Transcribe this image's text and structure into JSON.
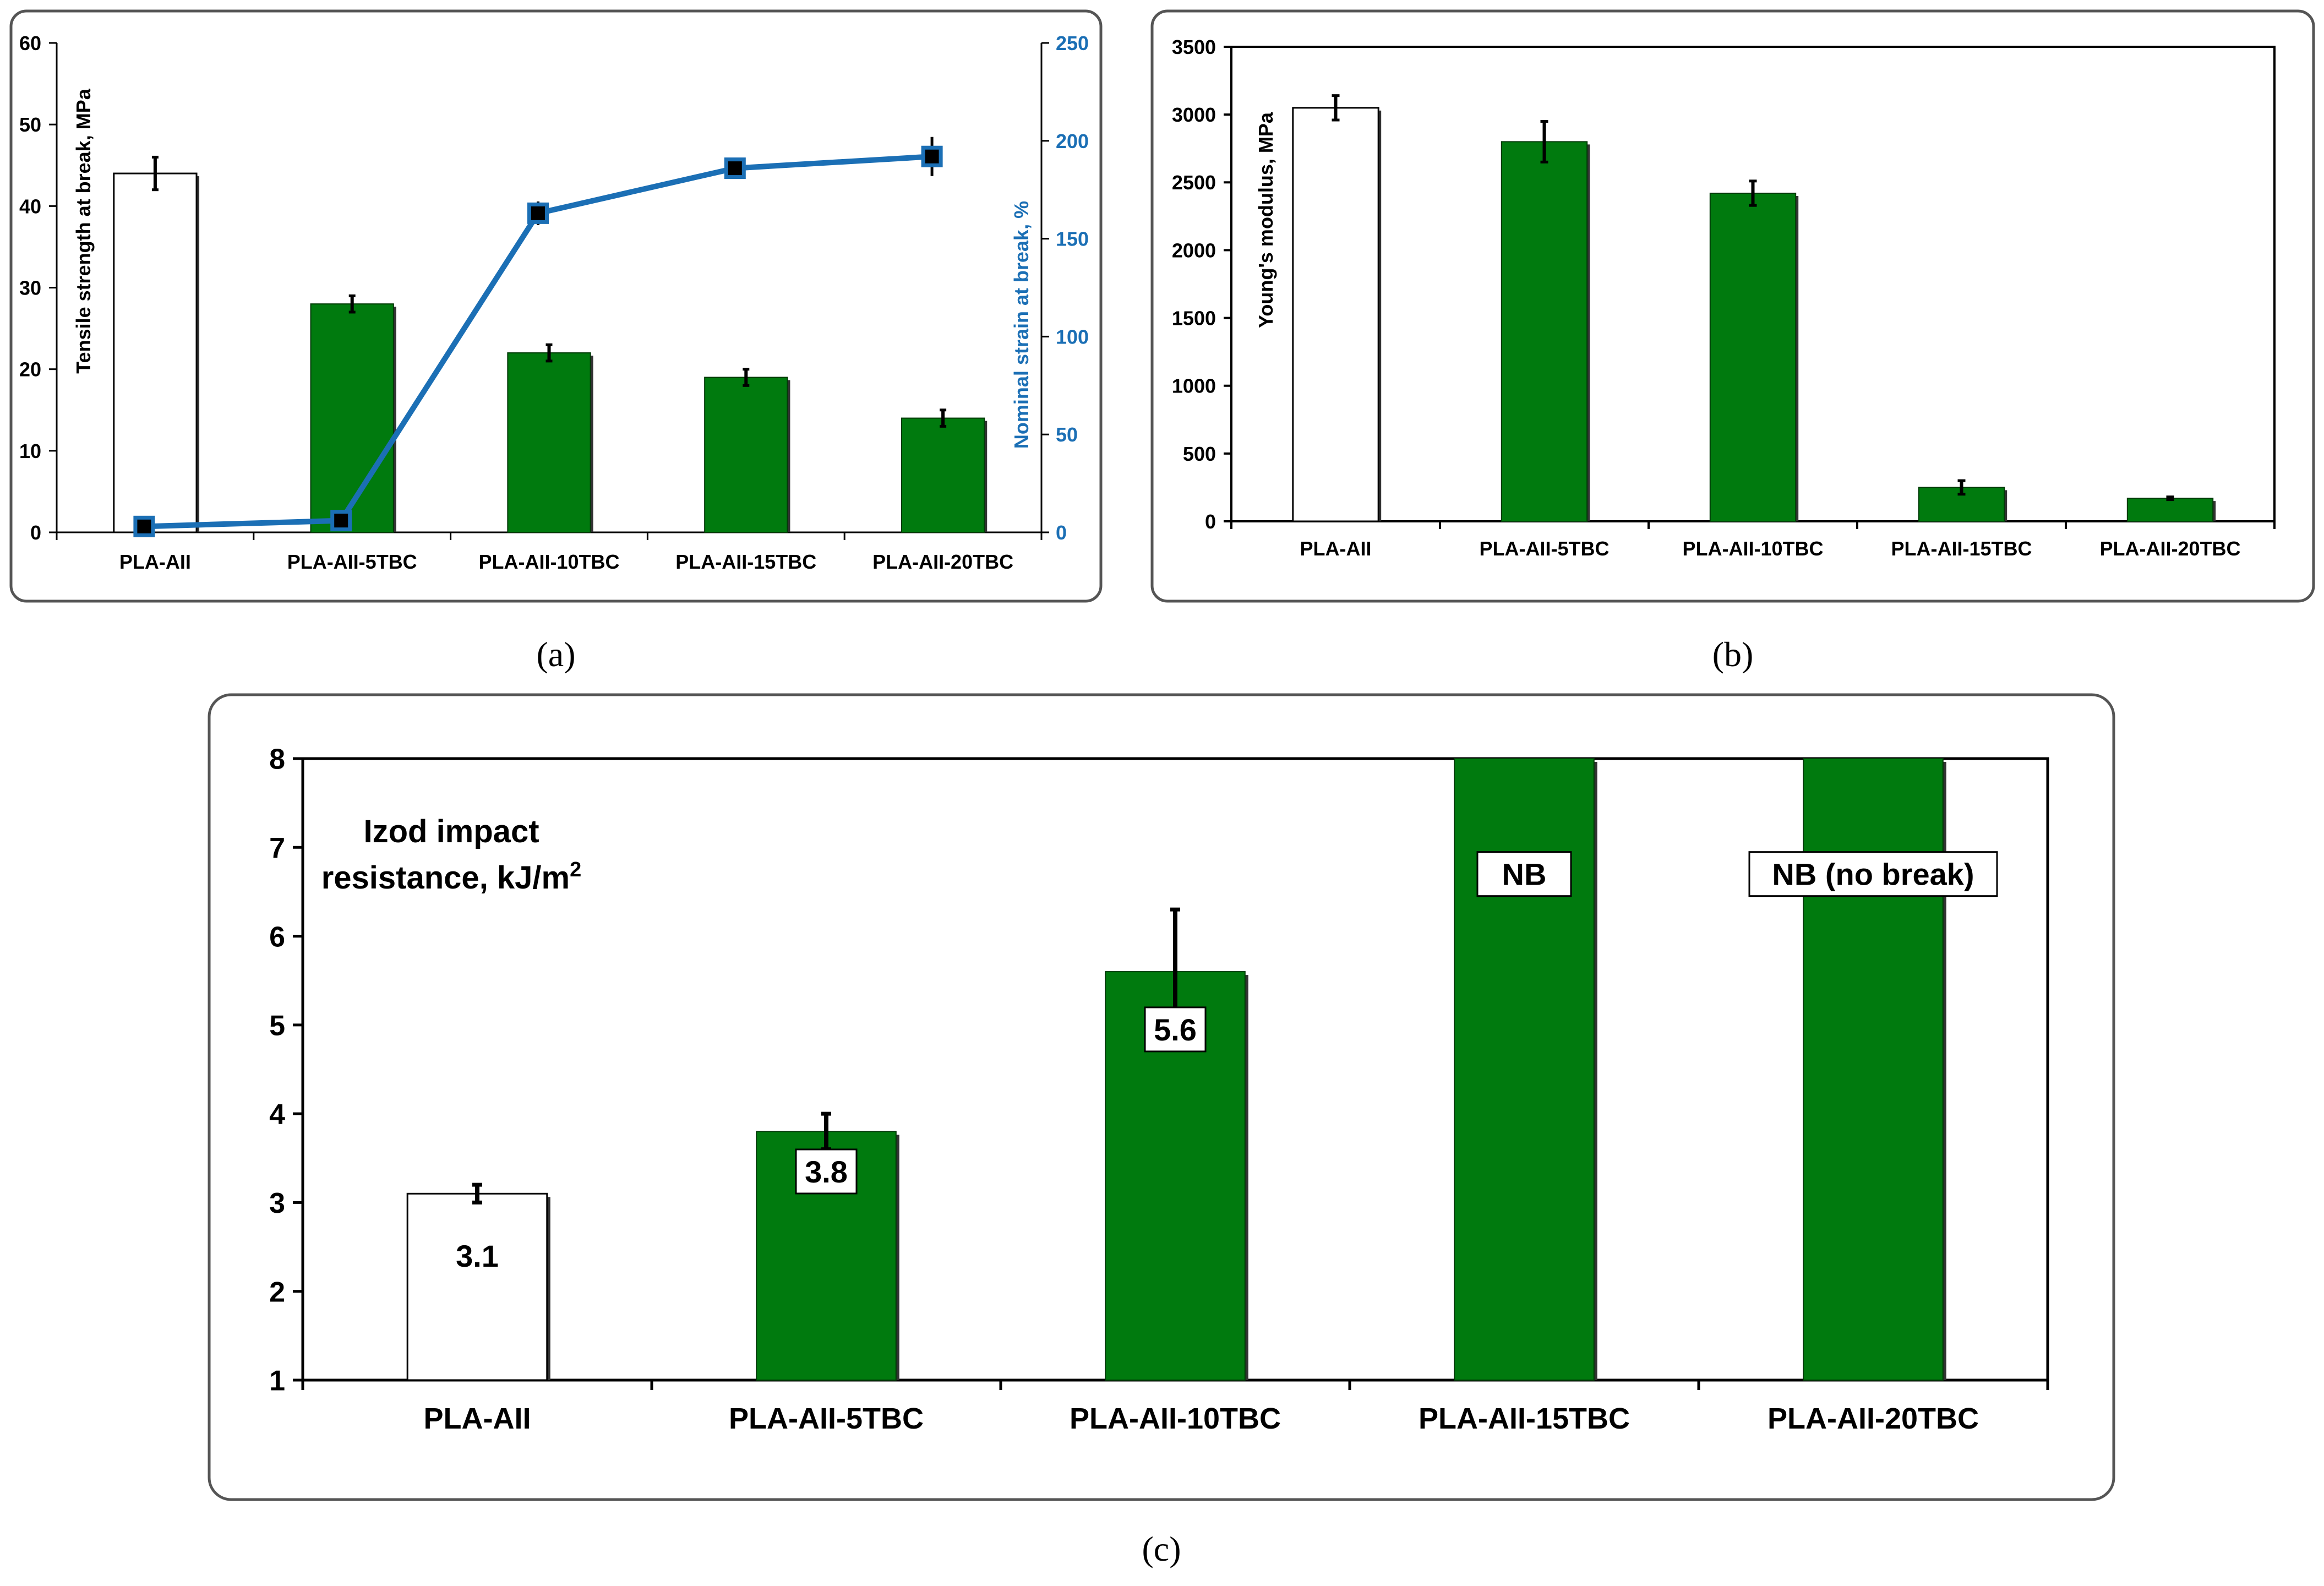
{
  "colors": {
    "green": "#007a0e",
    "blue": "#1b6fb5",
    "white_bar": "#ffffff",
    "frame": "#555555"
  },
  "labels": {
    "a": "(a)",
    "b": "(b)",
    "c": "(c)"
  },
  "chart_data": [
    {
      "id": "a",
      "type": "bar",
      "categories": [
        "PLA-AII",
        "PLA-AII-5TBC",
        "PLA-AII-10TBC",
        "PLA-AII-15TBC",
        "PLA-AII-20TBC"
      ],
      "ylabel": "Tensile strength at break, MPa",
      "ylim": [
        0,
        60
      ],
      "yticks": [
        "0",
        "10",
        "20",
        "30",
        "40",
        "50",
        "60"
      ],
      "series": [
        {
          "name": "Tensile strength at break, MPa",
          "values": [
            44,
            28,
            22,
            19,
            14
          ],
          "errors": [
            2,
            1,
            1,
            1,
            1
          ],
          "axis": "left"
        },
        {
          "name": "Nominal strain at break, %",
          "type": "line",
          "values": [
            3,
            6,
            163,
            186,
            192
          ],
          "errors": [
            1,
            1,
            6,
            5,
            10
          ],
          "axis": "right"
        }
      ],
      "y2label": "Nominal strain at break, %",
      "y2lim": [
        0,
        250
      ],
      "y2ticks": [
        "0",
        "50",
        "100",
        "150",
        "200",
        "250"
      ]
    },
    {
      "id": "b",
      "type": "bar",
      "categories": [
        "PLA-AII",
        "PLA-AII-5TBC",
        "PLA-AII-10TBC",
        "PLA-AII-15TBC",
        "PLA-AII-20TBC"
      ],
      "ylabel": "Young's modulus, MPa",
      "ylim": [
        0,
        3500
      ],
      "yticks": [
        "0",
        "500",
        "1000",
        "1500",
        "2000",
        "2500",
        "3000",
        "3500"
      ],
      "series": [
        {
          "name": "Young's modulus, MPa",
          "values": [
            3050,
            2800,
            2420,
            250,
            170
          ],
          "errors": [
            90,
            150,
            90,
            50,
            10
          ]
        }
      ]
    },
    {
      "id": "c",
      "type": "bar",
      "categories": [
        "PLA-AII",
        "PLA-AII-5TBC",
        "PLA-AII-10TBC",
        "PLA-AII-15TBC",
        "PLA-AII-20TBC"
      ],
      "ylabel_line1": "Izod impact",
      "ylabel_line2": "resistance, kJ/m",
      "ylabel_sup": "2",
      "ylim": [
        1,
        8
      ],
      "yticks": [
        "1",
        "2",
        "3",
        "4",
        "5",
        "6",
        "7",
        "8"
      ],
      "series": [
        {
          "name": "Izod impact resistance, kJ/m2",
          "values": [
            3.1,
            3.8,
            5.6,
            8,
            8
          ],
          "errors": [
            0.1,
            0.2,
            0.7,
            0,
            0
          ]
        }
      ],
      "data_labels": [
        "3.1",
        "3.8",
        "5.6",
        "NB",
        "NB (no break)"
      ]
    }
  ]
}
